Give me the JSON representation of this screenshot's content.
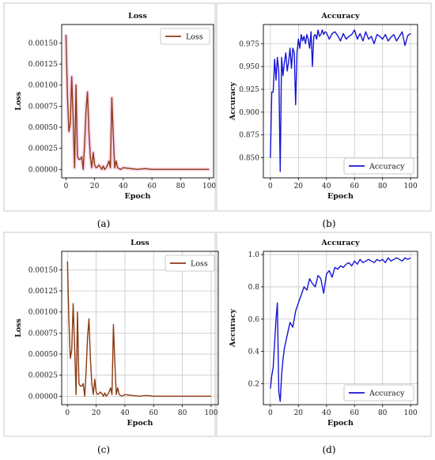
{
  "colors": {
    "loss": "#8b3a10",
    "accuracy": "#1414d6",
    "highlight": "#f5b8e4"
  },
  "captions": [
    "(a)",
    "(b)",
    "(c)",
    "(d)"
  ],
  "chart_data": [
    {
      "type": "line",
      "title": "Loss",
      "xlabel": "Epoch",
      "ylabel": "Loss",
      "xlim": [
        -3,
        103
      ],
      "ylim": [
        -0.0001,
        0.00172
      ],
      "xticks": [
        0,
        20,
        40,
        60,
        80,
        100
      ],
      "xtick_labels": [
        "0",
        "20",
        "40",
        "60",
        "80",
        "100"
      ],
      "yticks": [
        0,
        0.00025,
        0.0005,
        0.00075,
        0.001,
        0.00125,
        0.0015
      ],
      "ytick_labels": [
        "0.00000",
        "0.00025",
        "0.00050",
        "0.00075",
        "0.00100",
        "0.00125",
        "0.00150"
      ],
      "grid": false,
      "legend": "top-right",
      "series": [
        {
          "name": "Loss",
          "x": [
            0,
            1,
            2,
            3,
            4,
            5,
            6,
            7,
            8,
            9,
            10,
            11,
            12,
            13,
            14,
            15,
            16,
            17,
            18,
            19,
            20,
            21,
            22,
            23,
            24,
            25,
            26,
            27,
            28,
            29,
            30,
            31,
            32,
            33,
            34,
            35,
            36,
            37,
            38,
            40,
            45,
            50,
            55,
            60,
            65,
            70,
            75,
            80,
            85,
            90,
            95,
            100
          ],
          "y": [
            0.0016,
            0.0009,
            0.00045,
            0.00055,
            0.0011,
            0.0006,
            2e-05,
            0.001,
            0.00015,
            0.00012,
            0.00012,
            0.00015,
            0.0,
            0.0003,
            0.0007,
            0.00092,
            0.00045,
            0.00015,
            2e-05,
            0.0002,
            5e-05,
            2e-05,
            3e-05,
            5e-05,
            3e-05,
            0.0,
            4e-05,
            0.0,
            2e-05,
            5e-05,
            0.0001,
            2e-05,
            0.00085,
            0.0004,
            2e-05,
            0.0001,
            2e-05,
            1e-05,
            0.0,
            2e-05,
            1e-05,
            0.0,
            1e-05,
            0.0,
            0.0,
            0.0,
            0.0,
            0.0,
            0.0,
            0.0,
            0.0,
            0.0
          ]
        }
      ]
    },
    {
      "type": "line",
      "title": "Accuracy",
      "xlabel": "Epoch",
      "ylabel": "Accuracy",
      "xlim": [
        -5,
        105
      ],
      "ylim": [
        0.828,
        0.996
      ],
      "xticks": [
        0,
        20,
        40,
        60,
        80,
        100
      ],
      "xtick_labels": [
        "0",
        "20",
        "40",
        "60",
        "80",
        "100"
      ],
      "yticks": [
        0.85,
        0.875,
        0.9,
        0.925,
        0.95,
        0.975
      ],
      "ytick_labels": [
        "0.850",
        "0.875",
        "0.900",
        "0.925",
        "0.950",
        "0.975"
      ],
      "grid": true,
      "legend": "bottom-right",
      "series": [
        {
          "name": "Accuracy",
          "x": [
            0,
            1,
            2,
            3,
            4,
            5,
            6,
            7,
            8,
            9,
            10,
            11,
            12,
            13,
            14,
            15,
            16,
            17,
            18,
            19,
            20,
            21,
            22,
            23,
            24,
            25,
            26,
            27,
            28,
            29,
            30,
            31,
            32,
            33,
            34,
            35,
            36,
            37,
            38,
            39,
            40,
            42,
            44,
            46,
            48,
            50,
            52,
            54,
            56,
            58,
            60,
            62,
            64,
            66,
            68,
            70,
            72,
            74,
            76,
            78,
            80,
            82,
            84,
            86,
            88,
            90,
            92,
            94,
            96,
            98,
            100
          ],
          "y": [
            0.85,
            0.922,
            0.922,
            0.958,
            0.935,
            0.96,
            0.945,
            0.835,
            0.96,
            0.94,
            0.955,
            0.965,
            0.945,
            0.955,
            0.97,
            0.948,
            0.97,
            0.965,
            0.908,
            0.965,
            0.98,
            0.97,
            0.985,
            0.978,
            0.983,
            0.975,
            0.985,
            0.98,
            0.97,
            0.988,
            0.95,
            0.983,
            0.985,
            0.98,
            0.99,
            0.983,
            0.985,
            0.99,
            0.985,
            0.988,
            0.987,
            0.98,
            0.986,
            0.988,
            0.984,
            0.978,
            0.986,
            0.98,
            0.983,
            0.985,
            0.99,
            0.98,
            0.986,
            0.978,
            0.988,
            0.98,
            0.983,
            0.975,
            0.985,
            0.983,
            0.98,
            0.985,
            0.978,
            0.982,
            0.985,
            0.978,
            0.983,
            0.988,
            0.973,
            0.984,
            0.986
          ]
        }
      ]
    },
    {
      "type": "line",
      "title": "Loss",
      "xlabel": "Epoch",
      "ylabel": "Loss",
      "xlim": [
        -4,
        105
      ],
      "ylim": [
        -0.0001,
        0.00172
      ],
      "xticks": [
        0,
        20,
        40,
        60,
        80,
        100
      ],
      "xtick_labels": [
        "0",
        "20",
        "40",
        "60",
        "80",
        "100"
      ],
      "yticks": [
        0,
        0.00025,
        0.0005,
        0.00075,
        0.001,
        0.00125,
        0.0015
      ],
      "ytick_labels": [
        "0.00000",
        "0.00025",
        "0.00050",
        "0.00075",
        "0.00100",
        "0.00125",
        "0.00150"
      ],
      "grid": true,
      "legend": "top-right",
      "series": [
        {
          "name": "Loss",
          "x": [
            0,
            1,
            2,
            3,
            4,
            5,
            6,
            7,
            8,
            9,
            10,
            11,
            12,
            13,
            14,
            15,
            16,
            17,
            18,
            19,
            20,
            21,
            22,
            23,
            24,
            25,
            26,
            27,
            28,
            29,
            30,
            31,
            32,
            33,
            34,
            35,
            36,
            37,
            38,
            40,
            45,
            50,
            55,
            60,
            65,
            70,
            75,
            80,
            85,
            90,
            95,
            100
          ],
          "y": [
            0.0016,
            0.0009,
            0.00045,
            0.00055,
            0.0011,
            0.0006,
            2e-05,
            0.001,
            0.00015,
            0.00012,
            0.00012,
            0.00015,
            0.0,
            0.0003,
            0.0007,
            0.00092,
            0.00045,
            0.00015,
            2e-05,
            0.0002,
            5e-05,
            2e-05,
            3e-05,
            5e-05,
            3e-05,
            0.0,
            4e-05,
            0.0,
            2e-05,
            5e-05,
            0.0001,
            2e-05,
            0.00085,
            0.0004,
            2e-05,
            0.0001,
            2e-05,
            1e-05,
            0.0,
            2e-05,
            1e-05,
            0.0,
            1e-05,
            0.0,
            0.0,
            0.0,
            0.0,
            0.0,
            0.0,
            0.0,
            0.0,
            0.0
          ]
        }
      ]
    },
    {
      "type": "line",
      "title": "Accuracy",
      "xlabel": "Epoch",
      "ylabel": "Accuracy",
      "xlim": [
        -5,
        105
      ],
      "ylim": [
        0.07,
        1.02
      ],
      "xticks": [
        0,
        20,
        40,
        60,
        80,
        100
      ],
      "xtick_labels": [
        "0",
        "20",
        "40",
        "60",
        "80",
        "100"
      ],
      "yticks": [
        0.2,
        0.4,
        0.6,
        0.8,
        1.0
      ],
      "ytick_labels": [
        "0.2",
        "0.4",
        "0.6",
        "0.8",
        "1.0"
      ],
      "grid": true,
      "legend": "bottom-right",
      "series": [
        {
          "name": "Accuracy",
          "x": [
            0,
            1,
            2,
            3,
            4,
            5,
            6,
            7,
            8,
            9,
            10,
            12,
            14,
            16,
            18,
            20,
            22,
            24,
            26,
            28,
            30,
            32,
            34,
            36,
            38,
            40,
            42,
            44,
            46,
            48,
            50,
            52,
            54,
            56,
            58,
            60,
            62,
            64,
            66,
            68,
            70,
            72,
            74,
            76,
            78,
            80,
            82,
            84,
            86,
            88,
            90,
            92,
            94,
            96,
            98,
            100
          ],
          "y": [
            0.17,
            0.25,
            0.3,
            0.45,
            0.6,
            0.7,
            0.15,
            0.09,
            0.25,
            0.35,
            0.42,
            0.5,
            0.58,
            0.55,
            0.65,
            0.7,
            0.75,
            0.8,
            0.78,
            0.85,
            0.82,
            0.8,
            0.87,
            0.85,
            0.76,
            0.88,
            0.9,
            0.86,
            0.92,
            0.91,
            0.93,
            0.92,
            0.94,
            0.95,
            0.93,
            0.96,
            0.94,
            0.97,
            0.95,
            0.96,
            0.97,
            0.96,
            0.95,
            0.97,
            0.96,
            0.97,
            0.95,
            0.98,
            0.96,
            0.97,
            0.98,
            0.97,
            0.96,
            0.98,
            0.97,
            0.98
          ]
        }
      ]
    }
  ]
}
